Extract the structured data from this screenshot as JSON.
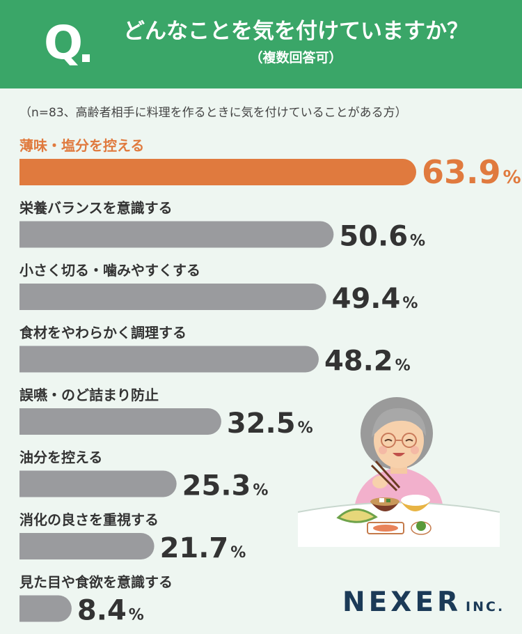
{
  "header": {
    "q_letter": "Q",
    "title": "どんなことを気を付けていますか？",
    "subtitle": "（複数回答可）"
  },
  "note": "（n=83、高齢者相手に料理を作るときに気を付けていることがある方）",
  "colors": {
    "header_bg": "#3aa668",
    "highlight": "#e07a3e",
    "bar": "#9a9b9e",
    "background": "#eef6f1",
    "logo": "#1b3a57"
  },
  "chart_data": {
    "type": "bar",
    "orientation": "horizontal",
    "unit": "%",
    "categories": [
      "薄味・塩分を控える",
      "栄養バランスを意識する",
      "小さく切る・噛みやすくする",
      "食材をやわらかく調理する",
      "誤嚥・のど詰まり防止",
      "油分を控える",
      "消化の良さを重視する",
      "見た目や食欲を意識する"
    ],
    "values": [
      63.9,
      50.6,
      49.4,
      48.2,
      32.5,
      25.3,
      21.7,
      8.4
    ],
    "value_labels": [
      "63.9",
      "50.6",
      "49.4",
      "48.2",
      "32.5",
      "25.3",
      "21.7",
      "8.4"
    ],
    "highlight_index": 0,
    "grid": false,
    "legend": false
  },
  "logo": {
    "main": "NEXER",
    "sub": "INC."
  },
  "illustration": {
    "icon": "elderly-woman-eating-meal-illustration"
  }
}
